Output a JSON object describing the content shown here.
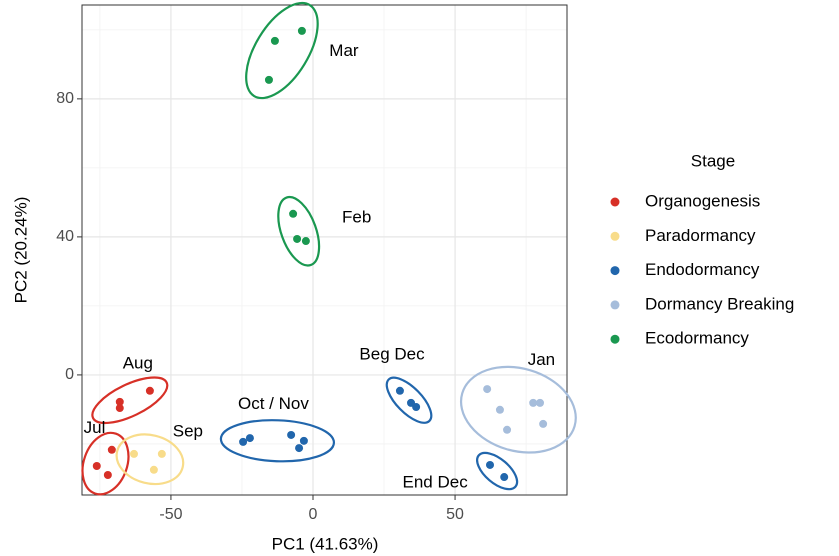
{
  "chart_data": {
    "type": "scatter",
    "x_label": "PC1 (41.63%)",
    "y_label": "PC2 (20.24%)",
    "xlim": [
      -81.3,
      89.4
    ],
    "ylim": [
      -34.8,
      107.2
    ],
    "xticks": [
      -50,
      0,
      50
    ],
    "yticks": [
      0,
      40,
      80
    ],
    "grid": true,
    "legend_title": "Stage",
    "legend_position": "right",
    "series": [
      {
        "name": "Organogenesis",
        "color": "#d73027",
        "groups": [
          {
            "label": "Aug",
            "x": [
              -68,
              -68,
              -57.4
            ],
            "y": [
              -7.8,
              -9.6,
              -4.6
            ]
          },
          {
            "label": "Jul",
            "x": [
              -70.8,
              -76.1,
              -72.2
            ],
            "y": [
              -21.7,
              -26.4,
              -29.0
            ]
          }
        ]
      },
      {
        "name": "Paradormancy",
        "color": "#f8dc8a",
        "groups": [
          {
            "label": "Sep",
            "x": [
              -63,
              -53.2,
              -56
            ],
            "y": [
              -22.9,
              -22.9,
              -27.5
            ]
          }
        ]
      },
      {
        "name": "Endodormancy",
        "color": "#2166ac",
        "groups": [
          {
            "label": "Oct / Nov",
            "x": [
              -24.6,
              -22.2,
              -7.7,
              -3.2,
              -4.9
            ],
            "y": [
              -19.4,
              -18.3,
              -17.4,
              -19.1,
              -21.2
            ]
          },
          {
            "label": "Beg Dec",
            "x": [
              30.6,
              34.5,
              36.3
            ],
            "y": [
              -4.6,
              -8.1,
              -9.3
            ]
          },
          {
            "label": "End Dec",
            "x": [
              62.3,
              67.3
            ],
            "y": [
              -26.1,
              -29.6
            ]
          }
        ]
      },
      {
        "name": "Dormancy Breaking",
        "color": "#a6bddb",
        "groups": [
          {
            "label": "Jan",
            "x": [
              61.3,
              65.8,
              68.3,
              77.5,
              79.9,
              81
            ],
            "y": [
              -4.1,
              -10.1,
              -15.9,
              -8.1,
              -8.1,
              -14.2
            ]
          }
        ]
      },
      {
        "name": "Ecodormancy",
        "color": "#1a9850",
        "groups": [
          {
            "label": "Mar",
            "x": [
              -13.4,
              -3.9,
              -15.5
            ],
            "y": [
              96.8,
              99.7,
              85.5
            ]
          },
          {
            "label": "Feb",
            "x": [
              -7,
              -5.6,
              -2.5
            ],
            "y": [
              46.7,
              39.4,
              38.8
            ]
          }
        ]
      }
    ]
  }
}
